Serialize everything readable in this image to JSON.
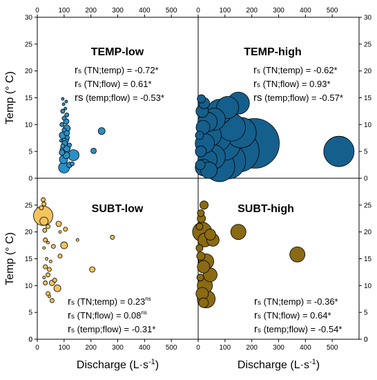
{
  "chart_data": {
    "type": "scatter",
    "subtype": "bubble",
    "layout": "2x2 panels sharing axes",
    "x_label": "Discharge (L·s",
    "x_label_sup": "-1",
    "x_label_end": ")",
    "y_label": "Temp (° C)",
    "xlim": [
      0,
      600
    ],
    "x_ticks": [
      "0",
      "100",
      "200",
      "300",
      "400",
      "500"
    ],
    "ylim": [
      0,
      30
    ],
    "y_ticks_top": [
      "0",
      "5",
      "10",
      "15",
      "20",
      "25",
      "30"
    ],
    "y_ticks_bottom": [
      "0",
      "5",
      "10",
      "15",
      "20",
      "25"
    ],
    "colors": {
      "TEMP-low": "#2b8fc7",
      "TEMP-high": "#155f8c",
      "SUBT-low": "#f3c35f",
      "SUBT-high": "#8a6a12"
    },
    "panels": [
      {
        "name": "TEMP-low",
        "title": "TEMP-low",
        "stats": [
          {
            "prefix": "r",
            "sub": "s",
            "text": " (TN;temp) = -0.72*",
            "sup": ""
          },
          {
            "prefix": "r",
            "sub": "s",
            "text": " (TN;flow) = 0.61*",
            "sup": ""
          },
          {
            "prefix": "rs",
            "sub": "",
            "text": " (temp;flow) = -0.53*",
            "sup": ""
          }
        ],
        "points": [
          {
            "x": 100,
            "y": 2,
            "s": 8
          },
          {
            "x": 98,
            "y": 3.5,
            "s": 6
          },
          {
            "x": 108,
            "y": 4.3,
            "s": 5
          },
          {
            "x": 135,
            "y": 4.3,
            "s": 8
          },
          {
            "x": 92,
            "y": 4.8,
            "s": 4
          },
          {
            "x": 98,
            "y": 5.3,
            "s": 5
          },
          {
            "x": 110,
            "y": 5.6,
            "s": 5
          },
          {
            "x": 120,
            "y": 2.5,
            "s": 4
          },
          {
            "x": 130,
            "y": 2.7,
            "s": 3
          },
          {
            "x": 95,
            "y": 6,
            "s": 3
          },
          {
            "x": 102,
            "y": 6.5,
            "s": 4
          },
          {
            "x": 105,
            "y": 7.2,
            "s": 5
          },
          {
            "x": 112,
            "y": 7.6,
            "s": 3
          },
          {
            "x": 95,
            "y": 8,
            "s": 5
          },
          {
            "x": 110,
            "y": 8.4,
            "s": 4
          },
          {
            "x": 100,
            "y": 9,
            "s": 3
          },
          {
            "x": 110,
            "y": 9.3,
            "s": 5
          },
          {
            "x": 92,
            "y": 10,
            "s": 3
          },
          {
            "x": 108,
            "y": 10.6,
            "s": 4
          },
          {
            "x": 100,
            "y": 11.2,
            "s": 3
          },
          {
            "x": 110,
            "y": 11.8,
            "s": 3
          },
          {
            "x": 95,
            "y": 12.5,
            "s": 3
          },
          {
            "x": 105,
            "y": 13,
            "s": 2
          },
          {
            "x": 98,
            "y": 13.8,
            "s": 2
          },
          {
            "x": 108,
            "y": 14.3,
            "s": 2
          },
          {
            "x": 95,
            "y": 14.8,
            "s": 2
          },
          {
            "x": 210,
            "y": 5.1,
            "s": 4
          },
          {
            "x": 240,
            "y": 8.8,
            "s": 5
          },
          {
            "x": 88,
            "y": 7,
            "s": 2
          },
          {
            "x": 120,
            "y": 6.2,
            "s": 3
          }
        ]
      },
      {
        "name": "TEMP-high",
        "title": "TEMP-high",
        "stats": [
          {
            "prefix": "r",
            "sub": "s",
            "text": " (TN;temp) = -0.62*",
            "sup": ""
          },
          {
            "prefix": "r",
            "sub": "s",
            "text": " (TN;flow) = 0.93*",
            "sup": ""
          },
          {
            "prefix": "rs",
            "sub": "",
            "text": " (temp;flow) = -0.57*",
            "sup": ""
          }
        ],
        "points": [
          {
            "x": 210,
            "y": 6.5,
            "s": 36
          },
          {
            "x": 150,
            "y": 5,
            "s": 30
          },
          {
            "x": 110,
            "y": 3.2,
            "s": 26
          },
          {
            "x": 80,
            "y": 2.2,
            "s": 22
          },
          {
            "x": 55,
            "y": 4,
            "s": 18
          },
          {
            "x": 35,
            "y": 3.5,
            "s": 14
          },
          {
            "x": 20,
            "y": 2,
            "s": 12
          },
          {
            "x": 25,
            "y": 6.5,
            "s": 14
          },
          {
            "x": 45,
            "y": 8,
            "s": 16
          },
          {
            "x": 70,
            "y": 7.5,
            "s": 20
          },
          {
            "x": 100,
            "y": 6.2,
            "s": 22
          },
          {
            "x": 150,
            "y": 14,
            "s": 16
          },
          {
            "x": 110,
            "y": 13.2,
            "s": 16
          },
          {
            "x": 80,
            "y": 12.4,
            "s": 18
          },
          {
            "x": 60,
            "y": 11,
            "s": 16
          },
          {
            "x": 35,
            "y": 10.5,
            "s": 14
          },
          {
            "x": 18,
            "y": 9.5,
            "s": 10
          },
          {
            "x": 15,
            "y": 12.5,
            "s": 9
          },
          {
            "x": 22,
            "y": 14,
            "s": 8
          },
          {
            "x": 12,
            "y": 14.8,
            "s": 6
          },
          {
            "x": 10,
            "y": 5,
            "s": 8
          },
          {
            "x": 8,
            "y": 2.5,
            "s": 7
          },
          {
            "x": 5,
            "y": 8,
            "s": 6
          },
          {
            "x": 40,
            "y": 1.5,
            "s": 12
          },
          {
            "x": 125,
            "y": 9.5,
            "s": 20
          },
          {
            "x": 160,
            "y": 8.5,
            "s": 22
          },
          {
            "x": 525,
            "y": 5,
            "s": 22
          }
        ]
      },
      {
        "name": "SUBT-low",
        "title": "SUBT-low",
        "stats": [
          {
            "prefix": "r",
            "sub": "s",
            "text": " (TN;temp) = 0.23",
            "sup": "ns"
          },
          {
            "prefix": "r",
            "sub": "s",
            "text": " (TN;flow) = 0.08",
            "sup": "ns"
          },
          {
            "prefix": "r",
            "sub": "s",
            "text": " (temp;flow) = -0.31*",
            "sup": ""
          }
        ],
        "points": [
          {
            "x": 22,
            "y": 23,
            "s": 14
          },
          {
            "x": 25,
            "y": 22,
            "s": 6
          },
          {
            "x": 22,
            "y": 26,
            "s": 3
          },
          {
            "x": 25,
            "y": 25.2,
            "s": 3
          },
          {
            "x": 15,
            "y": 24.5,
            "s": 3
          },
          {
            "x": 28,
            "y": 20.3,
            "s": 3
          },
          {
            "x": 40,
            "y": 21,
            "s": 3
          },
          {
            "x": 80,
            "y": 21.5,
            "s": 4
          },
          {
            "x": 105,
            "y": 20.5,
            "s": 3
          },
          {
            "x": 85,
            "y": 20,
            "s": 2
          },
          {
            "x": 30,
            "y": 18.5,
            "s": 3
          },
          {
            "x": 40,
            "y": 18,
            "s": 2
          },
          {
            "x": 25,
            "y": 17,
            "s": 2
          },
          {
            "x": 60,
            "y": 17.3,
            "s": 3
          },
          {
            "x": 100,
            "y": 17.5,
            "s": 5
          },
          {
            "x": 150,
            "y": 18.5,
            "s": 2
          },
          {
            "x": 280,
            "y": 19,
            "s": 3
          },
          {
            "x": 85,
            "y": 15.5,
            "s": 3
          },
          {
            "x": 35,
            "y": 15,
            "s": 2
          },
          {
            "x": 50,
            "y": 14.5,
            "s": 2
          },
          {
            "x": 30,
            "y": 13.5,
            "s": 3
          },
          {
            "x": 45,
            "y": 13,
            "s": 3
          },
          {
            "x": 40,
            "y": 12,
            "s": 3
          },
          {
            "x": 25,
            "y": 11.5,
            "s": 2
          },
          {
            "x": 65,
            "y": 11,
            "s": 3
          },
          {
            "x": 30,
            "y": 10.5,
            "s": 3
          },
          {
            "x": 55,
            "y": 10.5,
            "s": 4
          },
          {
            "x": 75,
            "y": 9.5,
            "s": 5
          },
          {
            "x": 40,
            "y": 8.5,
            "s": 3
          },
          {
            "x": 55,
            "y": 7.2,
            "s": 3
          },
          {
            "x": 45,
            "y": 8,
            "s": 2
          },
          {
            "x": 205,
            "y": 13,
            "s": 4
          }
        ]
      },
      {
        "name": "SUBT-high",
        "title": "SUBT-high",
        "stats": [
          {
            "prefix": "r",
            "sub": "s",
            "text": " (TN;temp) = -0.36*",
            "sup": ""
          },
          {
            "prefix": "r",
            "sub": "s",
            "text": " (TN;flow) = 0.64*",
            "sup": ""
          },
          {
            "prefix": "r",
            "sub": "s",
            "text": " (temp;flow) = -0.54*",
            "sup": ""
          }
        ],
        "points": [
          {
            "x": 22,
            "y": 25,
            "s": 6
          },
          {
            "x": 10,
            "y": 23.5,
            "s": 5
          },
          {
            "x": 12,
            "y": 22.5,
            "s": 6
          },
          {
            "x": 5,
            "y": 21,
            "s": 5
          },
          {
            "x": 15,
            "y": 20,
            "s": 14
          },
          {
            "x": 25,
            "y": 18.5,
            "s": 10
          },
          {
            "x": 55,
            "y": 18.5,
            "s": 9
          },
          {
            "x": 45,
            "y": 19.5,
            "s": 8
          },
          {
            "x": 150,
            "y": 20,
            "s": 11
          },
          {
            "x": 5,
            "y": 17,
            "s": 5
          },
          {
            "x": 10,
            "y": 15.5,
            "s": 6
          },
          {
            "x": 30,
            "y": 14.5,
            "s": 11
          },
          {
            "x": 20,
            "y": 13.5,
            "s": 9
          },
          {
            "x": 45,
            "y": 12,
            "s": 10
          },
          {
            "x": 25,
            "y": 10,
            "s": 11
          },
          {
            "x": 15,
            "y": 8.5,
            "s": 9
          },
          {
            "x": 30,
            "y": 7.5,
            "s": 13
          },
          {
            "x": 20,
            "y": 6.8,
            "s": 7
          },
          {
            "x": 370,
            "y": 15.8,
            "s": 11
          },
          {
            "x": 8,
            "y": 11.5,
            "s": 5
          }
        ]
      }
    ]
  }
}
